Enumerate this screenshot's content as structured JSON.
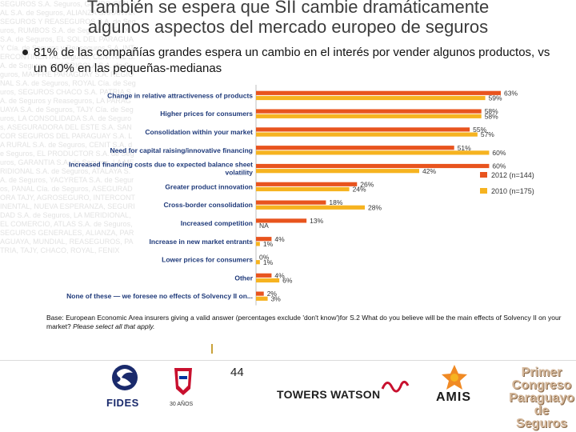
{
  "slide": {
    "title_line1": "También se espera que SII cambie dramáticamente",
    "title_line2": "algunos aspectos del mercado europeo de seguros",
    "bullet": "81% de las compañías grandes espera un cambio en el interés por vender algunos productos, vs  un 60% en las pequeñas-medianas",
    "base_label": "Base: European Economic Area insurers giving a valid answer (percentages exclude 'don't know')for S.2 What do you believe will be the main",
    "base_label_2a": "effects of Solvency II on your market? ",
    "base_label_2b": "Please select all that apply.",
    "page_number": "44",
    "background_text": "SEGUROS S.A. Seguros, GRUPO GEN RAL S.A. de Seguros, ALIANZA GARANTIA SEGUROS Y REASEGUROS S.A. de Seguros, RUMBOS S.A. de Seguros, FENIX S.A. de Seguros, EL SOL DEL PARAGUAY Cía. de Seguros y Reaseguros S.A. INTERCONTINENTAL Seguros, CENTRAL S.A. de Seguros, LA AGRICOLA S.A. de Seguros, MAPFRE PARAGUAY S.A. REGIONAL S.A. de Seguros, ROYAL Cía. de Seguros, SEGUROS CHACO S.A. PATRIA S.A. de Seguros y Reaseguros, LA PARAGUAYA S.A. de Seguros, TAJY Cía. de Seguros, LA CONSOLIDADA S.A. de Seguros, ASEGURADORA DEL ESTE S.A. SANCOR SEGUROS DEL PARAGUAY S.A. LA RURAL S.A. de Seguros, CENIT S.A. de Seguros, EL PRODUCTOR S.A. de Seguros, GARANTIA S.A. de Seguros, LA MERIDIONAL S.A. de Seguros, ATALAYA S.A. de Seguros, YACYRETA S.A. de Seguros, PANAL Cía. de Seguros, ASEGURADORA TAJY, AGROSEGURO, INTERCONTINENTAL, NUEVA ESPERANZA, SEGURIDAD S.A. de Seguros, LA MERIDIONAL, EL COMERCIO, ATLAS S.A. de Seguros, SEGUROS GENERALES, ALIANZA, PARAGUAYA, MUNDIAL, REASEGUROS, PATRIA, TAJY, CHACO, ROYAL, FENIX"
  },
  "logos": {
    "fides": "FIDES",
    "aniversario": "30 AÑOS",
    "towers_watson": "TOWERS WATSON",
    "amis": "AMIS",
    "congreso": [
      "Primer",
      "Congreso",
      "Paraguayo",
      "de Seguros"
    ]
  },
  "colors": {
    "series_2012": "#e8541e",
    "series_2010": "#f6b320",
    "category_text": "#1f3a7a",
    "value_text": "#333333"
  },
  "chart_data": {
    "type": "bar",
    "orientation": "horizontal",
    "categories": [
      "Change in relative attractiveness of products",
      "Higher prices for consumers",
      "Consolidation within your market",
      "Need for capital raising/innovative financing",
      "Increased financing costs due to expected balance sheet volatility",
      "Greater product innovation",
      "Cross-border consolidation",
      "Increased competition",
      "Increase in new market entrants",
      "Lower prices for consumers",
      "Other",
      "None of these — we foresee no effects of Solvency II on..."
    ],
    "series": [
      {
        "name": "2012 (n=144)",
        "values": [
          63,
          58,
          55,
          51,
          60,
          26,
          18,
          13,
          4,
          0,
          4,
          2
        ],
        "labels": [
          "63%",
          "58%",
          "55%",
          "51%",
          "60%",
          "26%",
          "18%",
          "13%",
          "4%",
          "0%",
          "4%",
          "2%"
        ],
        "color": "#e8541e"
      },
      {
        "name": "2010 (n=175)",
        "values": [
          59,
          58,
          57,
          60,
          42,
          24,
          28,
          null,
          1,
          1,
          6,
          3
        ],
        "labels": [
          "59%",
          "58%",
          "57%",
          "60%",
          "42%",
          "24%",
          "28%",
          "NA",
          "1%",
          "1%",
          "6%",
          "3%"
        ],
        "color": "#f6b320"
      }
    ],
    "xlim": [
      0,
      70
    ],
    "legend_position": "right",
    "title": "",
    "xlabel": "",
    "ylabel": ""
  }
}
